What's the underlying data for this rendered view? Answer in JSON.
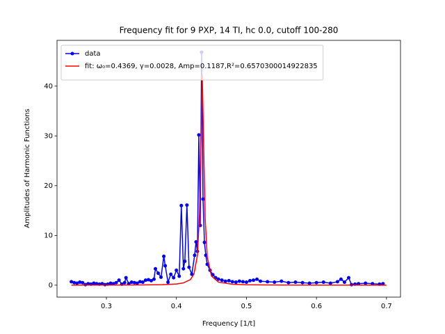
{
  "chart_data": {
    "type": "line",
    "title": "Frequency fit for 9 PXP, 14 TI, hc 0.0, cutoff 100-280",
    "x_label": "Frequency [1/t]",
    "y_label": "Amplitudes of Harmonic Functions",
    "xlim": [
      0.2295,
      0.72
    ],
    "ylim": [
      -2.4,
      49.2
    ],
    "xticks": [
      0.3,
      0.4,
      0.5,
      0.6,
      0.7
    ],
    "yticks": [
      0,
      10,
      20,
      30,
      40
    ],
    "legend": "upper left",
    "series": [
      {
        "name": "data",
        "color": "#0000ff",
        "marker": "o",
        "x": [
          0.25,
          0.254,
          0.258,
          0.262,
          0.266,
          0.27,
          0.274,
          0.278,
          0.282,
          0.286,
          0.29,
          0.294,
          0.298,
          0.302,
          0.306,
          0.31,
          0.314,
          0.318,
          0.322,
          0.326,
          0.328,
          0.332,
          0.336,
          0.34,
          0.344,
          0.348,
          0.352,
          0.356,
          0.36,
          0.364,
          0.368,
          0.37,
          0.374,
          0.378,
          0.382,
          0.384,
          0.388,
          0.392,
          0.396,
          0.4,
          0.404,
          0.407,
          0.41,
          0.412,
          0.415,
          0.418,
          0.422,
          0.426,
          0.428,
          0.43,
          0.432,
          0.434,
          0.436,
          0.438,
          0.44,
          0.442,
          0.444,
          0.448,
          0.452,
          0.456,
          0.46,
          0.465,
          0.47,
          0.475,
          0.48,
          0.485,
          0.49,
          0.495,
          0.5,
          0.505,
          0.51,
          0.515,
          0.52,
          0.53,
          0.54,
          0.55,
          0.56,
          0.57,
          0.58,
          0.59,
          0.6,
          0.61,
          0.62,
          0.63,
          0.635,
          0.64,
          0.646,
          0.65,
          0.655,
          0.66,
          0.67,
          0.68,
          0.69,
          0.695
        ],
        "values": [
          0.7,
          0.5,
          0.4,
          0.6,
          0.5,
          0.1,
          0.3,
          0.2,
          0.4,
          0.3,
          0.2,
          0.3,
          0.1,
          0.2,
          0.4,
          0.3,
          0.5,
          1.0,
          0.2,
          0.5,
          1.5,
          0.3,
          0.6,
          0.5,
          0.4,
          0.7,
          0.6,
          1.0,
          1.1,
          0.9,
          1.2,
          3.3,
          2.4,
          1.6,
          5.8,
          3.9,
          0.6,
          2.2,
          1.5,
          3.0,
          1.8,
          16.0,
          3.3,
          4.8,
          16.1,
          3.6,
          2.2,
          6.0,
          8.7,
          6.8,
          30.2,
          12.0,
          46.8,
          17.3,
          8.6,
          6.0,
          4.2,
          3.0,
          2.1,
          1.5,
          1.2,
          1.0,
          0.8,
          0.9,
          0.7,
          0.6,
          0.8,
          0.7,
          0.6,
          0.9,
          1.0,
          1.2,
          0.8,
          0.7,
          0.6,
          0.8,
          0.5,
          0.6,
          0.5,
          0.4,
          0.5,
          0.6,
          0.4,
          0.7,
          1.2,
          0.6,
          1.5,
          0.1,
          0.2,
          0.3,
          0.4,
          0.3,
          0.2,
          0.3
        ]
      },
      {
        "name": "fit: ω₀=0.4369, γ=0.0028, Amp=0.1187,R²=0.6570300014922835",
        "color": "#ff0000",
        "x": [
          0.25,
          0.3,
          0.35,
          0.38,
          0.4,
          0.41,
          0.42,
          0.425,
          0.43,
          0.433,
          0.435,
          0.4369,
          0.439,
          0.441,
          0.444,
          0.45,
          0.46,
          0.48,
          0.5,
          0.55,
          0.6,
          0.65,
          0.7
        ],
        "values": [
          0.01,
          0.02,
          0.04,
          0.1,
          0.24,
          0.46,
          1.13,
          2.23,
          6.0,
          14.45,
          29.15,
          42.39,
          27.24,
          13.51,
          5.71,
          1.85,
          0.61,
          0.18,
          0.08,
          0.03,
          0.01,
          0.01,
          0.0
        ]
      }
    ]
  }
}
